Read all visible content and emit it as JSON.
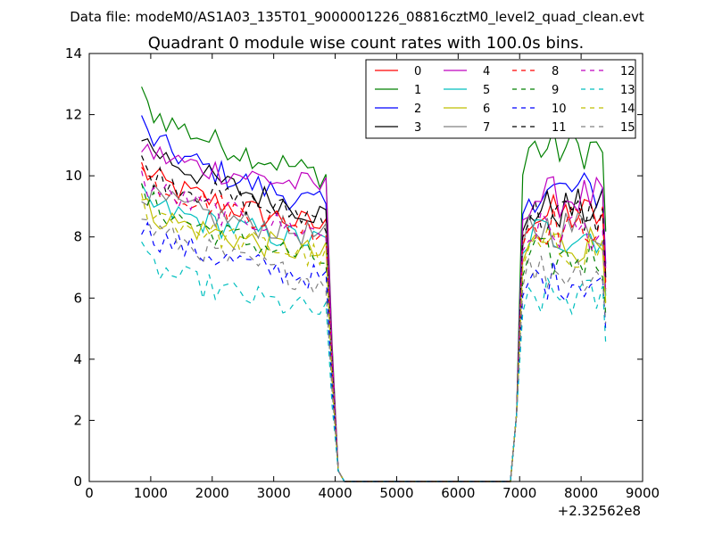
{
  "chart_data": {
    "type": "line",
    "suptitle": "Data file: modeM0/AS1A03_135T01_9000001226_08816cztM0_level2_quad_clean.evt",
    "title": "Quadrant 0 module wise count rates with 100.0s bins.",
    "xlabel": "",
    "ylabel": "",
    "x_offset_label": "+2.32562e8",
    "xlim": [
      0,
      9000
    ],
    "ylim": [
      0,
      14
    ],
    "x_ticks": [
      0,
      1000,
      2000,
      3000,
      4000,
      5000,
      6000,
      7000,
      8000,
      9000
    ],
    "y_ticks": [
      0,
      2,
      4,
      6,
      8,
      10,
      12,
      14
    ],
    "x_tick_labels": [
      "0",
      "1000",
      "2000",
      "3000",
      "4000",
      "5000",
      "6000",
      "7000",
      "8000",
      "9000"
    ],
    "y_tick_labels": [
      "0",
      "2",
      "4",
      "6",
      "8",
      "10",
      "12",
      "14"
    ],
    "grid": false,
    "legend_placement": "top-right",
    "legend_columns": 4,
    "segments": [
      {
        "x_start": 850,
        "x_end": 3950,
        "step": 100
      },
      {
        "x_start": 3950,
        "x_end": 6900,
        "step": 100
      },
      {
        "x_start": 6900,
        "x_end": 8400,
        "step": 100
      }
    ],
    "series": [
      {
        "name": "0",
        "color": "#ff0000",
        "dash": "solid",
        "level_a": 10.3,
        "level_b": 8.3,
        "level_c": 8.7
      },
      {
        "name": "1",
        "color": "#008000",
        "dash": "solid",
        "level_a": 12.6,
        "level_b": 10.0,
        "level_c": 10.9
      },
      {
        "name": "2",
        "color": "#0000ff",
        "dash": "solid",
        "level_a": 11.7,
        "level_b": 9.0,
        "level_c": 9.5
      },
      {
        "name": "3",
        "color": "#000000",
        "dash": "solid",
        "level_a": 11.4,
        "level_b": 8.7,
        "level_c": 8.9
      },
      {
        "name": "4",
        "color": "#bf00bf",
        "dash": "solid",
        "level_a": 11.0,
        "level_b": 9.6,
        "level_c": 9.3
      },
      {
        "name": "5",
        "color": "#00bfbf",
        "dash": "solid",
        "level_a": 9.3,
        "level_b": 7.8,
        "level_c": 8.1
      },
      {
        "name": "6",
        "color": "#bfbf00",
        "dash": "solid",
        "level_a": 9.1,
        "level_b": 7.4,
        "level_c": 7.8
      },
      {
        "name": "7",
        "color": "#808080",
        "dash": "solid",
        "level_a": 9.6,
        "level_b": 8.0,
        "level_c": 8.3
      },
      {
        "name": "8",
        "color": "#ff0000",
        "dash": "dashed",
        "level_a": 10.2,
        "level_b": 8.2,
        "level_c": 8.4
      },
      {
        "name": "9",
        "color": "#008000",
        "dash": "dashed",
        "level_a": 9.5,
        "level_b": 7.2,
        "level_c": 7.3
      },
      {
        "name": "10",
        "color": "#0000ff",
        "dash": "dashed",
        "level_a": 8.4,
        "level_b": 6.6,
        "level_c": 6.6
      },
      {
        "name": "11",
        "color": "#000000",
        "dash": "dashed",
        "level_a": 10.4,
        "level_b": 8.6,
        "level_c": 8.7
      },
      {
        "name": "12",
        "color": "#bf00bf",
        "dash": "dashed",
        "level_a": 9.9,
        "level_b": 8.1,
        "level_c": 8.2
      },
      {
        "name": "13",
        "color": "#00bfbf",
        "dash": "dashed",
        "level_a": 7.4,
        "level_b": 5.5,
        "level_c": 6.0
      },
      {
        "name": "14",
        "color": "#bfbf00",
        "dash": "dashed",
        "level_a": 9.2,
        "level_b": 7.3,
        "level_c": 7.6
      },
      {
        "name": "15",
        "color": "#808080",
        "dash": "dashed",
        "level_a": 8.7,
        "level_b": 6.5,
        "level_c": 6.9
      }
    ]
  }
}
